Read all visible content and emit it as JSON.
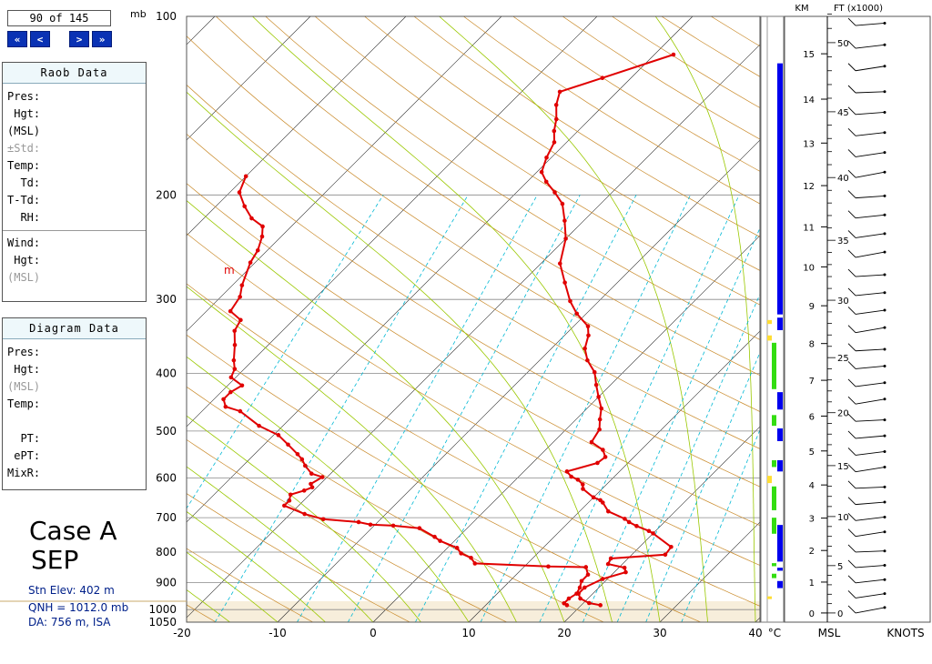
{
  "nav": {
    "counter": "90 of 145",
    "pressure_unit": "mb",
    "first": "«",
    "prev": "<",
    "next": ">",
    "last": "»"
  },
  "raob_panel": {
    "title": "Raob Data",
    "rows": [
      "Pres:",
      " Hgt:",
      "(MSL)",
      "±Std:",
      "Temp:",
      "  Td:",
      "T-Td:",
      "  RH:"
    ],
    "wind_rows": [
      "Wind:",
      " Hgt:",
      "(MSL)"
    ]
  },
  "diagram_panel": {
    "title": "Diagram Data",
    "rows": [
      "Pres:",
      " Hgt:",
      "(MSL)",
      "Temp:",
      "",
      "  PT:",
      " ePT:",
      "MixR:"
    ]
  },
  "case_label": {
    "line1": "Case A",
    "line2": "SEP"
  },
  "station": {
    "elev": "Stn Elev: 402 m",
    "qnh": "QNH = 1012.0 mb",
    "da": "DA: 756 m, ISA"
  },
  "right_axis": {
    "km_label": "KM",
    "ft_label": "FT (x1000)",
    "msl_label": "MSL",
    "knots_label": "KNOTS"
  },
  "colors": {
    "temp_trace": "#e00000",
    "isotherm": "#2a2a2a",
    "isobar": "#888888",
    "dry_adiabat": "#c98a2a",
    "moist_adiabat": "#9ac800",
    "mixing_ratio": "#00b8d4",
    "cloud_blue": "#0000ee",
    "cloud_green": "#33dd11",
    "cloud_yellow": "#ffdd33"
  },
  "chart_data": {
    "type": "line",
    "title": "",
    "xlabel": "°C",
    "ylabel": "mb",
    "x_ticks": [
      -20,
      -10,
      0,
      10,
      20,
      30,
      40
    ],
    "y_ticks": [
      100,
      200,
      300,
      400,
      500,
      600,
      700,
      800,
      900,
      1000,
      1050
    ],
    "annotation": "m",
    "series": [
      {
        "id": "temperature",
        "points": [
          [
            22.0,
            983
          ],
          [
            20.6,
            975
          ],
          [
            19.2,
            958
          ],
          [
            18.5,
            940
          ],
          [
            18.5,
            918
          ],
          [
            19.5,
            888
          ],
          [
            21.2,
            865
          ],
          [
            20.6,
            850
          ],
          [
            18.5,
            838
          ],
          [
            18.2,
            820
          ],
          [
            23.5,
            808
          ],
          [
            23.3,
            784
          ],
          [
            20,
            744
          ],
          [
            19.3,
            737
          ],
          [
            17.5,
            723
          ],
          [
            16.3,
            712
          ],
          [
            15.5,
            703
          ],
          [
            13,
            683
          ],
          [
            11.5,
            660
          ],
          [
            11.0,
            654
          ],
          [
            10.0,
            647
          ],
          [
            8,
            626
          ],
          [
            7.5,
            615
          ],
          [
            6.5,
            604
          ],
          [
            5.5,
            597
          ],
          [
            4.5,
            585
          ],
          [
            6.8,
            566
          ],
          [
            7,
            553
          ],
          [
            6,
            538
          ],
          [
            4,
            522
          ],
          [
            3.5,
            497
          ],
          [
            2.5,
            478
          ],
          [
            1.5,
            458
          ],
          [
            0,
            438
          ],
          [
            -1.5,
            418
          ],
          [
            -3,
            398
          ],
          [
            -5,
            380
          ],
          [
            -6.5,
            363
          ],
          [
            -7.5,
            345
          ],
          [
            -8.5,
            333
          ],
          [
            -11,
            317
          ],
          [
            -13,
            302
          ],
          [
            -15.5,
            281
          ],
          [
            -18,
            261
          ],
          [
            -20,
            237
          ],
          [
            -22,
            221
          ],
          [
            -24,
            207
          ],
          [
            -26,
            198
          ],
          [
            -28,
            190
          ],
          [
            -29.5,
            183
          ],
          [
            -30.5,
            173
          ],
          [
            -31.3,
            163
          ],
          [
            -32.5,
            156
          ],
          [
            -33.5,
            149
          ],
          [
            -35,
            141
          ],
          [
            -36,
            134
          ],
          [
            -33,
            127
          ],
          [
            -28,
            116
          ]
        ]
      },
      {
        "id": "dewpoint",
        "points": [
          [
            18.5,
            983
          ],
          [
            18.0,
            976
          ],
          [
            18.0,
            958
          ],
          [
            18.3,
            940
          ],
          [
            18.0,
            918
          ],
          [
            17.5,
            895
          ],
          [
            17.5,
            873
          ],
          [
            16.5,
            848
          ],
          [
            12.5,
            846
          ],
          [
            4.5,
            836
          ],
          [
            3.5,
            818
          ],
          [
            2,
            804
          ],
          [
            1,
            787
          ],
          [
            -1.5,
            766
          ],
          [
            -2.5,
            754
          ],
          [
            -5,
            729
          ],
          [
            -8,
            722
          ],
          [
            -10.5,
            719
          ],
          [
            -12,
            712
          ],
          [
            -16,
            704
          ],
          [
            -18.5,
            690
          ],
          [
            -21.5,
            668
          ],
          [
            -21.5,
            655
          ],
          [
            -22,
            640
          ],
          [
            -21,
            630
          ],
          [
            -20.5,
            622
          ],
          [
            -21,
            614
          ],
          [
            -20.5,
            598
          ],
          [
            -22,
            590
          ],
          [
            -23.5,
            572
          ],
          [
            -24.5,
            558
          ],
          [
            -25.5,
            547
          ],
          [
            -27.5,
            527
          ],
          [
            -29.5,
            508
          ],
          [
            -32.5,
            490
          ],
          [
            -36,
            463
          ],
          [
            -38,
            455
          ],
          [
            -39,
            442
          ],
          [
            -39,
            430
          ],
          [
            -38.5,
            419
          ],
          [
            -40.5,
            406
          ],
          [
            -41,
            393
          ],
          [
            -42,
            380
          ],
          [
            -43.5,
            358
          ],
          [
            -45,
            339
          ],
          [
            -45.5,
            325
          ],
          [
            -47.5,
            314
          ],
          [
            -48,
            297
          ],
          [
            -49,
            284
          ],
          [
            -50.5,
            260
          ],
          [
            -51,
            248
          ],
          [
            -52,
            235
          ],
          [
            -53,
            226
          ],
          [
            -55,
            219
          ],
          [
            -57,
            209
          ],
          [
            -59,
            198
          ],
          [
            -60,
            186
          ]
        ]
      }
    ],
    "skew": "45°",
    "cloud_bar": [
      {
        "top_mb": 120,
        "bottom_mb": 318,
        "color": "blue"
      },
      {
        "top_mb": 325,
        "bottom_mb": 330,
        "color": "yellow"
      },
      {
        "top_mb": 322,
        "bottom_mb": 338,
        "color": "blue"
      },
      {
        "top_mb": 345,
        "bottom_mb": 352,
        "color": "yellow"
      },
      {
        "top_mb": 355,
        "bottom_mb": 425,
        "color": "green"
      },
      {
        "top_mb": 430,
        "bottom_mb": 460,
        "color": "blue"
      },
      {
        "top_mb": 470,
        "bottom_mb": 490,
        "color": "green"
      },
      {
        "top_mb": 495,
        "bottom_mb": 520,
        "color": "blue"
      },
      {
        "top_mb": 560,
        "bottom_mb": 575,
        "color": "green"
      },
      {
        "top_mb": 560,
        "bottom_mb": 585,
        "color": "blue"
      },
      {
        "top_mb": 595,
        "bottom_mb": 612,
        "color": "yellow"
      },
      {
        "top_mb": 620,
        "bottom_mb": 680,
        "color": "green"
      },
      {
        "top_mb": 700,
        "bottom_mb": 745,
        "color": "green"
      },
      {
        "top_mb": 720,
        "bottom_mb": 830,
        "color": "blue"
      },
      {
        "top_mb": 835,
        "bottom_mb": 845,
        "color": "green"
      },
      {
        "top_mb": 850,
        "bottom_mb": 860,
        "color": "blue"
      },
      {
        "top_mb": 870,
        "bottom_mb": 885,
        "color": "green"
      },
      {
        "top_mb": 895,
        "bottom_mb": 920,
        "color": "blue"
      },
      {
        "top_mb": 950,
        "bottom_mb": 960,
        "color": "yellow"
      }
    ],
    "km_ticks": [
      0,
      1,
      2,
      3,
      4,
      5,
      6,
      7,
      8,
      9,
      10,
      11,
      12,
      13,
      14,
      15
    ],
    "ft_ticks": [
      0,
      5,
      10,
      15,
      20,
      25,
      30,
      35,
      40,
      45,
      50
    ]
  }
}
